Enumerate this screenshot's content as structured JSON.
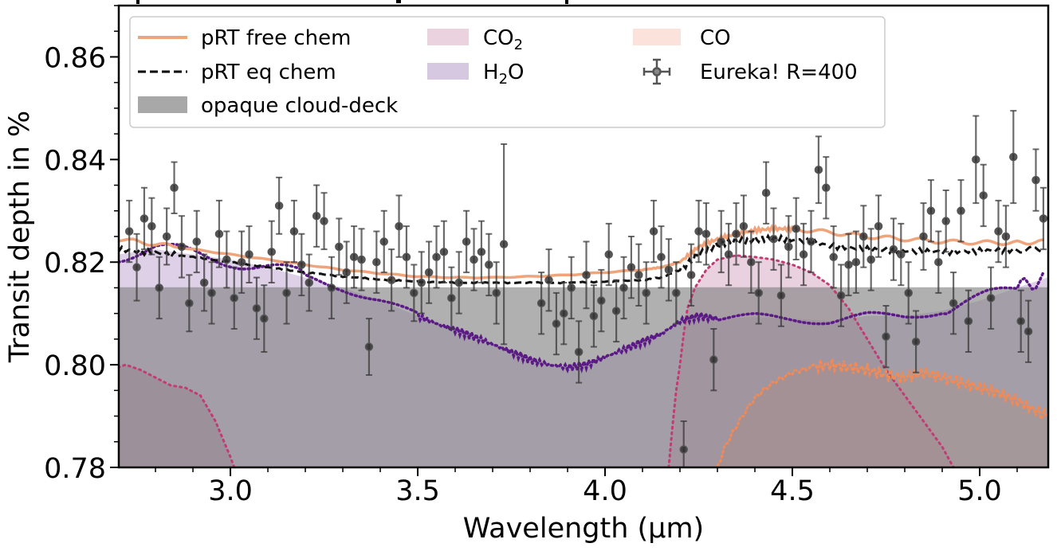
{
  "chart_data": {
    "type": "scatter",
    "title": "",
    "xlabel": "Wavelength (μm)",
    "ylabel": "Transit depth in %",
    "xlim": [
      2.702,
      5.183
    ],
    "ylim": [
      0.78,
      0.87
    ],
    "xticks": [
      3.0,
      3.5,
      4.0,
      4.5,
      5.0
    ],
    "xtick_labels": [
      "3.0",
      "3.5",
      "4.0",
      "4.5",
      "5.0"
    ],
    "yticks": [
      0.78,
      0.8,
      0.82,
      0.84,
      0.86
    ],
    "ytick_labels": [
      "0.78",
      "0.80",
      "0.82",
      "0.84",
      "0.86"
    ],
    "x_minor_step": 0.1,
    "y_minor_step": 0.005,
    "grid": false,
    "legend": {
      "placement": "top-left",
      "entries": [
        {
          "label": "pRT free chem",
          "kind": "line",
          "color": "#f0a47c"
        },
        {
          "label": "pRT eq chem",
          "kind": "dashed",
          "color": "#000000"
        },
        {
          "label": "opaque cloud-deck",
          "kind": "patch",
          "color": "#a8a8a8"
        },
        {
          "label_main": "CO",
          "label_sub": "2",
          "label_tail": "",
          "kind": "patch",
          "color": "#ead3df"
        },
        {
          "label_main": "H",
          "label_sub": "2",
          "label_tail": "O",
          "kind": "patch",
          "color": "#d6c8e0"
        },
        {
          "label": "CO",
          "kind": "patch",
          "color": "#fbe3dc"
        },
        {
          "label": "Eureka! R=400",
          "kind": "errorbar",
          "color": "#555555"
        }
      ]
    },
    "colors": {
      "free_chem": "#f0a47c",
      "eq_chem": "#111111",
      "cloud_deck": "#a9a9a9",
      "co2_fill": "#e9d0dd",
      "co2_line": "#c23b73",
      "h2o_fill": "#d8c8e2",
      "h2o_line": "#5b1a86",
      "co_fill": "#f8dcd2",
      "co_line": "#f08a56",
      "data_marker": "#555555"
    },
    "cloud_deck_level": 0.8151,
    "series": [
      {
        "name": "pRT free chem",
        "x": [
          2.7,
          2.8,
          2.9,
          3.0,
          3.1,
          3.2,
          3.3,
          3.4,
          3.5,
          3.6,
          3.7,
          3.8,
          3.9,
          4.0,
          4.1,
          4.15,
          4.2,
          4.25,
          4.3,
          4.35,
          4.4,
          4.45,
          4.5,
          4.6,
          4.7,
          4.8,
          4.9,
          5.0,
          5.1,
          5.18
        ],
        "y": [
          0.8245,
          0.8235,
          0.8225,
          0.8215,
          0.8205,
          0.8195,
          0.8185,
          0.8178,
          0.8172,
          0.817,
          0.817,
          0.8172,
          0.8175,
          0.818,
          0.8185,
          0.819,
          0.82,
          0.823,
          0.8245,
          0.8255,
          0.8262,
          0.8265,
          0.8265,
          0.8258,
          0.825,
          0.8245,
          0.824,
          0.8238,
          0.8238,
          0.824
        ]
      },
      {
        "name": "pRT eq chem",
        "x": [
          2.7,
          2.8,
          2.9,
          3.0,
          3.1,
          3.2,
          3.3,
          3.4,
          3.5,
          3.6,
          3.7,
          3.8,
          3.9,
          4.0,
          4.1,
          4.15,
          4.2,
          4.25,
          4.3,
          4.35,
          4.4,
          4.45,
          4.5,
          4.6,
          4.7,
          4.8,
          4.9,
          5.0,
          5.1,
          5.18
        ],
        "y": [
          0.8225,
          0.8218,
          0.821,
          0.82,
          0.819,
          0.818,
          0.8172,
          0.8166,
          0.8162,
          0.816,
          0.816,
          0.816,
          0.816,
          0.8162,
          0.8165,
          0.817,
          0.8185,
          0.8215,
          0.8235,
          0.824,
          0.8245,
          0.8245,
          0.8245,
          0.8232,
          0.8225,
          0.8222,
          0.822,
          0.8222,
          0.8224,
          0.8226
        ]
      },
      {
        "name": "H2O",
        "x": [
          2.7,
          2.8,
          2.9,
          3.0,
          3.1,
          3.2,
          3.3,
          3.4,
          3.5,
          3.55,
          3.6,
          3.65,
          3.7,
          3.75,
          3.8,
          3.85,
          3.9,
          3.95,
          4.0,
          4.05,
          4.1,
          4.15,
          4.2,
          4.25,
          4.3,
          4.4,
          4.5,
          4.6,
          4.7,
          4.8,
          4.9,
          5.0,
          5.1,
          5.18
        ],
        "y": [
          0.8215,
          0.8225,
          0.8215,
          0.8205,
          0.819,
          0.817,
          0.815,
          0.8125,
          0.8095,
          0.808,
          0.8068,
          0.8055,
          0.804,
          0.8025,
          0.801,
          0.8,
          0.7995,
          0.8,
          0.8015,
          0.803,
          0.8045,
          0.806,
          0.8085,
          0.8095,
          0.809,
          0.8093,
          0.809,
          0.8085,
          0.8095,
          0.8095,
          0.8105,
          0.8125,
          0.815,
          0.817
        ]
      },
      {
        "name": "CO2",
        "x": [
          2.7,
          2.72,
          2.76,
          2.8,
          2.84,
          2.88,
          2.92,
          2.96,
          3.0,
          3.01,
          4.17,
          4.18,
          4.19,
          4.2,
          4.21,
          4.22,
          4.24,
          4.27,
          4.3,
          4.35,
          4.4,
          4.45,
          4.5,
          4.55,
          4.6,
          4.65,
          4.7,
          4.75,
          4.8,
          4.85,
          4.9,
          4.93
        ],
        "y": [
          0.7995,
          0.8,
          0.799,
          0.7975,
          0.796,
          0.7955,
          0.794,
          0.789,
          0.782,
          0.78,
          0.78,
          0.788,
          0.795,
          0.8,
          0.806,
          0.811,
          0.815,
          0.8185,
          0.8205,
          0.8213,
          0.821,
          0.8205,
          0.8195,
          0.818,
          0.8155,
          0.811,
          0.805,
          0.799,
          0.794,
          0.789,
          0.784,
          0.78
        ]
      },
      {
        "name": "CO",
        "x": [
          4.3,
          4.32,
          4.35,
          4.38,
          4.4,
          4.43,
          4.46,
          4.5,
          4.55,
          4.6,
          4.65,
          4.7,
          4.75,
          4.8,
          4.85,
          4.9,
          4.95,
          5.0,
          5.05,
          5.1,
          5.15,
          5.18
        ],
        "y": [
          0.78,
          0.784,
          0.788,
          0.7915,
          0.7935,
          0.7955,
          0.797,
          0.7985,
          0.7995,
          0.8,
          0.7995,
          0.799,
          0.798,
          0.7975,
          0.7985,
          0.7975,
          0.7965,
          0.7955,
          0.7945,
          0.793,
          0.791,
          0.79
        ]
      }
    ],
    "eureka_data": {
      "name": "Eureka! R=400",
      "x": [
        2.73,
        2.75,
        2.77,
        2.79,
        2.81,
        2.83,
        2.85,
        2.87,
        2.89,
        2.91,
        2.93,
        2.95,
        2.97,
        2.99,
        3.01,
        3.03,
        3.05,
        3.07,
        3.09,
        3.11,
        3.13,
        3.15,
        3.17,
        3.19,
        3.21,
        3.23,
        3.25,
        3.27,
        3.29,
        3.31,
        3.33,
        3.35,
        3.37,
        3.39,
        3.41,
        3.43,
        3.45,
        3.47,
        3.49,
        3.51,
        3.53,
        3.55,
        3.57,
        3.59,
        3.61,
        3.63,
        3.65,
        3.67,
        3.69,
        3.71,
        3.73,
        3.83,
        3.85,
        3.87,
        3.89,
        3.91,
        3.93,
        3.95,
        3.97,
        3.99,
        4.01,
        4.03,
        4.05,
        4.07,
        4.09,
        4.11,
        4.13,
        4.15,
        4.17,
        4.19,
        4.21,
        4.23,
        4.25,
        4.27,
        4.29,
        4.31,
        4.33,
        4.35,
        4.37,
        4.39,
        4.41,
        4.43,
        4.45,
        4.47,
        4.49,
        4.51,
        4.53,
        4.55,
        4.57,
        4.59,
        4.61,
        4.63,
        4.65,
        4.67,
        4.69,
        4.71,
        4.73,
        4.75,
        4.77,
        4.79,
        4.81,
        4.83,
        4.85,
        4.87,
        4.89,
        4.91,
        4.93,
        4.95,
        4.97,
        4.99,
        5.01,
        5.03,
        5.05,
        5.07,
        5.09,
        5.11,
        5.13,
        5.15,
        5.17
      ],
      "y": [
        0.826,
        0.819,
        0.8285,
        0.827,
        0.815,
        0.825,
        0.8345,
        0.823,
        0.812,
        0.824,
        0.816,
        0.814,
        0.8255,
        0.8205,
        0.813,
        0.82,
        0.8215,
        0.811,
        0.809,
        0.822,
        0.831,
        0.814,
        0.826,
        0.8195,
        0.816,
        0.829,
        0.828,
        0.815,
        0.823,
        0.818,
        0.821,
        0.8205,
        0.8035,
        0.82,
        0.824,
        0.8165,
        0.827,
        0.821,
        0.814,
        0.816,
        0.818,
        0.821,
        0.822,
        0.813,
        0.816,
        0.824,
        0.8205,
        0.822,
        0.8195,
        0.814,
        0.8235,
        0.812,
        0.8165,
        0.808,
        0.81,
        0.815,
        0.8025,
        0.8175,
        0.8095,
        0.8125,
        0.8215,
        0.8105,
        0.815,
        0.819,
        0.8175,
        0.814,
        0.826,
        0.821,
        0.8185,
        0.814,
        0.7835,
        0.8175,
        0.826,
        0.8255,
        0.801,
        0.824,
        0.8215,
        0.8255,
        0.827,
        0.82,
        0.814,
        0.8335,
        0.8245,
        0.8135,
        0.823,
        0.8265,
        0.8215,
        0.824,
        0.838,
        0.8345,
        0.821,
        0.8135,
        0.8195,
        0.82,
        0.825,
        0.8205,
        0.827,
        0.8055,
        0.8225,
        0.8215,
        0.814,
        0.8045,
        0.825,
        0.83,
        0.82,
        0.828,
        0.812,
        0.83,
        0.8085,
        0.84,
        0.833,
        0.813,
        0.826,
        0.825,
        0.8405,
        0.8085,
        0.8065,
        0.836,
        0.8285
      ],
      "yerr": [
        0.006,
        0.0065,
        0.006,
        0.0055,
        0.006,
        0.0055,
        0.005,
        0.006,
        0.0055,
        0.006,
        0.0055,
        0.006,
        0.0065,
        0.0055,
        0.006,
        0.006,
        0.0055,
        0.006,
        0.0065,
        0.006,
        0.0055,
        0.006,
        0.006,
        0.006,
        0.0055,
        0.006,
        0.0055,
        0.006,
        0.0055,
        0.006,
        0.006,
        0.006,
        0.0055,
        0.006,
        0.006,
        0.006,
        0.006,
        0.006,
        0.0055,
        0.006,
        0.006,
        0.006,
        0.006,
        0.006,
        0.006,
        0.006,
        0.006,
        0.006,
        0.006,
        0.006,
        0.0195,
        0.006,
        0.006,
        0.006,
        0.006,
        0.006,
        0.006,
        0.0065,
        0.006,
        0.006,
        0.006,
        0.006,
        0.006,
        0.006,
        0.006,
        0.006,
        0.006,
        0.006,
        0.006,
        0.006,
        0.0055,
        0.006,
        0.006,
        0.006,
        0.006,
        0.006,
        0.006,
        0.006,
        0.006,
        0.006,
        0.006,
        0.006,
        0.006,
        0.006,
        0.006,
        0.006,
        0.006,
        0.006,
        0.0065,
        0.006,
        0.006,
        0.006,
        0.006,
        0.006,
        0.006,
        0.006,
        0.006,
        0.006,
        0.006,
        0.006,
        0.006,
        0.006,
        0.0065,
        0.006,
        0.006,
        0.006,
        0.006,
        0.006,
        0.006,
        0.0085,
        0.006,
        0.006,
        0.006,
        0.006,
        0.009,
        0.006,
        0.006,
        0.006,
        0.006
      ]
    }
  }
}
